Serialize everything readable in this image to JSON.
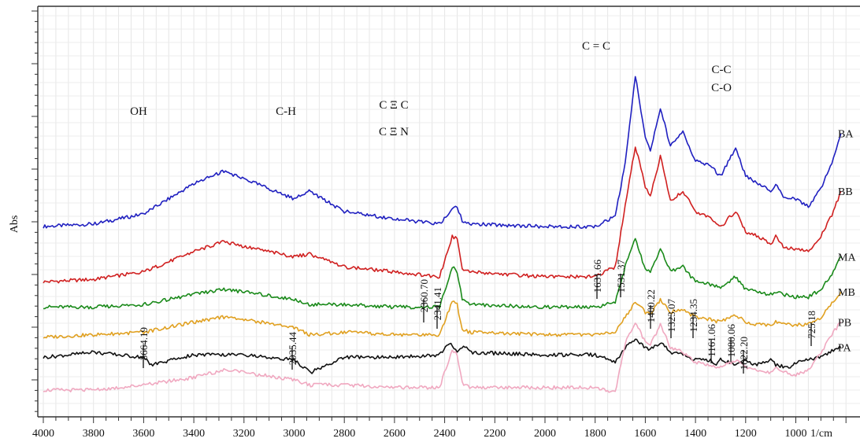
{
  "chart_data": {
    "type": "line",
    "title": "",
    "xlabel": "1/cm",
    "ylabel": "Abs",
    "xlim": [
      4000,
      800
    ],
    "x_reversed": true,
    "grid": true,
    "x_ticks": [
      4000,
      3800,
      3600,
      3400,
      3200,
      3000,
      2800,
      2600,
      2400,
      2200,
      2000,
      1800,
      1600,
      1400,
      1200,
      1000
    ],
    "group_labels": [
      {
        "text": "OH",
        "x": 3530
      },
      {
        "text": "C-H",
        "x": 2955
      },
      {
        "text": "C Ξ C",
        "x": 2500
      },
      {
        "text": "C Ξ N",
        "x": 2500
      },
      {
        "text": "C = C",
        "x": 1620
      },
      {
        "text": "C-C",
        "x": 1075
      },
      {
        "text": "C-O",
        "x": 1075
      }
    ],
    "peak_labels": [
      {
        "text": "3664.19",
        "x": 3570
      },
      {
        "text": "2935.44",
        "x": 2935
      },
      {
        "text": "2360.70",
        "x": 2375
      },
      {
        "text": "2341.41",
        "x": 2325
      },
      {
        "text": "1631.66",
        "x": 1631
      },
      {
        "text": "1531.37",
        "x": 1531
      },
      {
        "text": "1400.22",
        "x": 1400
      },
      {
        "text": "1323.07",
        "x": 1323
      },
      {
        "text": "1234.35",
        "x": 1234
      },
      {
        "text": "1161.06",
        "x": 1161
      },
      {
        "text": "1080.06",
        "x": 1080
      },
      {
        "text": "1022.20",
        "x": 1022
      },
      {
        "text": "725.18",
        "x": 850
      }
    ],
    "series": [
      {
        "name": "BA",
        "color": "#2020c0",
        "x": [
          4000,
          3800,
          3600,
          3400,
          3280,
          3200,
          3000,
          2940,
          2800,
          2600,
          2420,
          2370,
          2350,
          2330,
          2300,
          2000,
          1800,
          1720,
          1680,
          1640,
          1600,
          1580,
          1540,
          1500,
          1450,
          1400,
          1340,
          1300,
          1240,
          1200,
          1150,
          1100,
          1080,
          1050,
          1000,
          950,
          900,
          850,
          820
        ],
        "y": [
          0.6,
          0.61,
          0.65,
          0.77,
          0.82,
          0.79,
          0.71,
          0.74,
          0.66,
          0.63,
          0.61,
          0.67,
          0.68,
          0.62,
          0.61,
          0.6,
          0.6,
          0.64,
          0.85,
          1.2,
          0.95,
          0.9,
          1.07,
          0.92,
          0.98,
          0.86,
          0.84,
          0.8,
          0.91,
          0.8,
          0.77,
          0.74,
          0.77,
          0.72,
          0.71,
          0.68,
          0.75,
          0.87,
          0.97
        ]
      },
      {
        "name": "BB",
        "color": "#d02020",
        "x": [
          4000,
          3800,
          3600,
          3400,
          3280,
          3200,
          3000,
          2940,
          2800,
          2600,
          2420,
          2370,
          2350,
          2330,
          2300,
          2000,
          1800,
          1720,
          1680,
          1640,
          1600,
          1580,
          1540,
          1500,
          1450,
          1400,
          1340,
          1300,
          1240,
          1200,
          1150,
          1100,
          1080,
          1050,
          1000,
          950,
          900,
          850,
          820
        ],
        "y": [
          0.38,
          0.39,
          0.42,
          0.5,
          0.54,
          0.52,
          0.48,
          0.49,
          0.44,
          0.42,
          0.4,
          0.56,
          0.55,
          0.43,
          0.42,
          0.4,
          0.4,
          0.44,
          0.68,
          0.92,
          0.76,
          0.72,
          0.88,
          0.7,
          0.74,
          0.66,
          0.63,
          0.6,
          0.66,
          0.58,
          0.56,
          0.53,
          0.56,
          0.52,
          0.51,
          0.5,
          0.56,
          0.66,
          0.74
        ]
      },
      {
        "name": "MA",
        "color": "#1a8a1a",
        "x": [
          4000,
          3800,
          3600,
          3400,
          3280,
          3200,
          3000,
          2940,
          2800,
          2600,
          2420,
          2370,
          2350,
          2330,
          2300,
          2000,
          1800,
          1720,
          1680,
          1640,
          1600,
          1580,
          1540,
          1500,
          1450,
          1400,
          1340,
          1300,
          1240,
          1200,
          1150,
          1100,
          1080,
          1050,
          1000,
          950,
          900,
          850,
          820
        ],
        "y": [
          0.28,
          0.28,
          0.29,
          0.33,
          0.35,
          0.34,
          0.31,
          0.29,
          0.29,
          0.28,
          0.28,
          0.44,
          0.42,
          0.31,
          0.29,
          0.28,
          0.28,
          0.3,
          0.44,
          0.55,
          0.43,
          0.42,
          0.51,
          0.42,
          0.44,
          0.38,
          0.37,
          0.36,
          0.4,
          0.35,
          0.34,
          0.33,
          0.34,
          0.33,
          0.32,
          0.32,
          0.35,
          0.42,
          0.48
        ]
      },
      {
        "name": "MB",
        "color": "#e0a020",
        "x": [
          4000,
          3800,
          3600,
          3400,
          3280,
          3200,
          3000,
          2940,
          2800,
          2600,
          2420,
          2370,
          2350,
          2330,
          2300,
          2000,
          1800,
          1720,
          1680,
          1640,
          1600,
          1580,
          1540,
          1500,
          1450,
          1400,
          1340,
          1300,
          1240,
          1200,
          1150,
          1100,
          1080,
          1050,
          1000,
          950,
          900,
          850,
          820
        ],
        "y": [
          0.16,
          0.17,
          0.18,
          0.22,
          0.24,
          0.23,
          0.2,
          0.17,
          0.18,
          0.17,
          0.17,
          0.3,
          0.29,
          0.19,
          0.18,
          0.17,
          0.17,
          0.18,
          0.24,
          0.3,
          0.26,
          0.25,
          0.31,
          0.26,
          0.27,
          0.24,
          0.23,
          0.22,
          0.25,
          0.22,
          0.21,
          0.21,
          0.22,
          0.21,
          0.21,
          0.21,
          0.24,
          0.3,
          0.34
        ]
      },
      {
        "name": "PA",
        "color": "#111111",
        "x": [
          4000,
          3800,
          3600,
          3570,
          3400,
          3200,
          3000,
          2935,
          2800,
          2600,
          2420,
          2375,
          2350,
          2325,
          2300,
          2000,
          1800,
          1720,
          1680,
          1640,
          1600,
          1580,
          1540,
          1500,
          1450,
          1400,
          1340,
          1323,
          1300,
          1234,
          1200,
          1161,
          1100,
          1080,
          1022,
          1000,
          900,
          850,
          820
        ],
        "y": [
          0.08,
          0.1,
          0.08,
          0.05,
          0.09,
          0.09,
          0.07,
          0.02,
          0.08,
          0.08,
          0.09,
          0.14,
          0.1,
          0.13,
          0.1,
          0.09,
          0.09,
          0.06,
          0.12,
          0.15,
          0.12,
          0.11,
          0.14,
          0.1,
          0.09,
          0.07,
          0.07,
          0.05,
          0.07,
          0.05,
          0.07,
          0.05,
          0.07,
          0.05,
          0.04,
          0.06,
          0.08,
          0.11,
          0.12
        ]
      },
      {
        "name": "PB",
        "color": "#f0a8c0",
        "x": [
          4000,
          3800,
          3600,
          3400,
          3280,
          3200,
          3000,
          2940,
          2800,
          2600,
          2420,
          2370,
          2350,
          2330,
          2300,
          2000,
          1800,
          1720,
          1680,
          1640,
          1600,
          1580,
          1540,
          1500,
          1450,
          1400,
          1340,
          1300,
          1240,
          1200,
          1150,
          1100,
          1080,
          1050,
          1000,
          950,
          900,
          850,
          820
        ],
        "y": [
          -0.05,
          -0.05,
          -0.03,
          0.0,
          0.03,
          0.02,
          -0.01,
          -0.03,
          -0.03,
          -0.04,
          -0.04,
          0.11,
          0.09,
          -0.02,
          -0.04,
          -0.04,
          -0.04,
          -0.06,
          0.14,
          0.22,
          0.14,
          0.13,
          0.21,
          0.12,
          0.1,
          0.06,
          0.05,
          0.04,
          0.07,
          0.04,
          0.03,
          0.02,
          0.04,
          0.02,
          0.01,
          0.03,
          0.1,
          0.18,
          0.22
        ]
      }
    ]
  }
}
